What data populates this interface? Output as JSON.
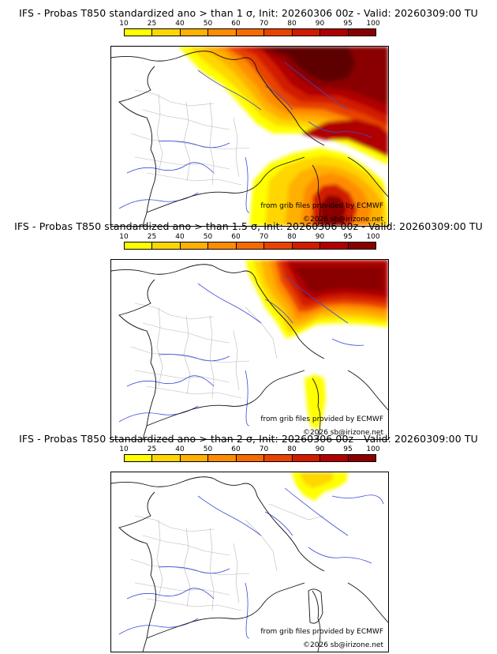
{
  "colorbar": {
    "labels": [
      "10",
      "25",
      "40",
      "50",
      "60",
      "70",
      "80",
      "90",
      "95",
      "100"
    ],
    "colors": [
      "#ffff00",
      "#ffd600",
      "#ffb000",
      "#ff8c00",
      "#f76a00",
      "#e84300",
      "#d21c00",
      "#b00000",
      "#8a0000",
      "#5e0000"
    ]
  },
  "panels": [
    {
      "title": "IFS - Probas T850  standardized ano > than 1 σ, Init: 20260306 00z - Valid: 20260309:00 TU"
    },
    {
      "title": "IFS - Probas T850  standardized ano > than 1.5 σ, Init: 20260306 00z - Valid: 20260309:00 TU"
    },
    {
      "title": "IFS - Probas T850  standardized ano > than 2 σ, Init: 20260306 00z - Valid: 20260309:00 TU"
    }
  ],
  "credits": {
    "source": "from grib files provided by ECMWF",
    "copyright": "©2026 sb@irizone.net"
  }
}
